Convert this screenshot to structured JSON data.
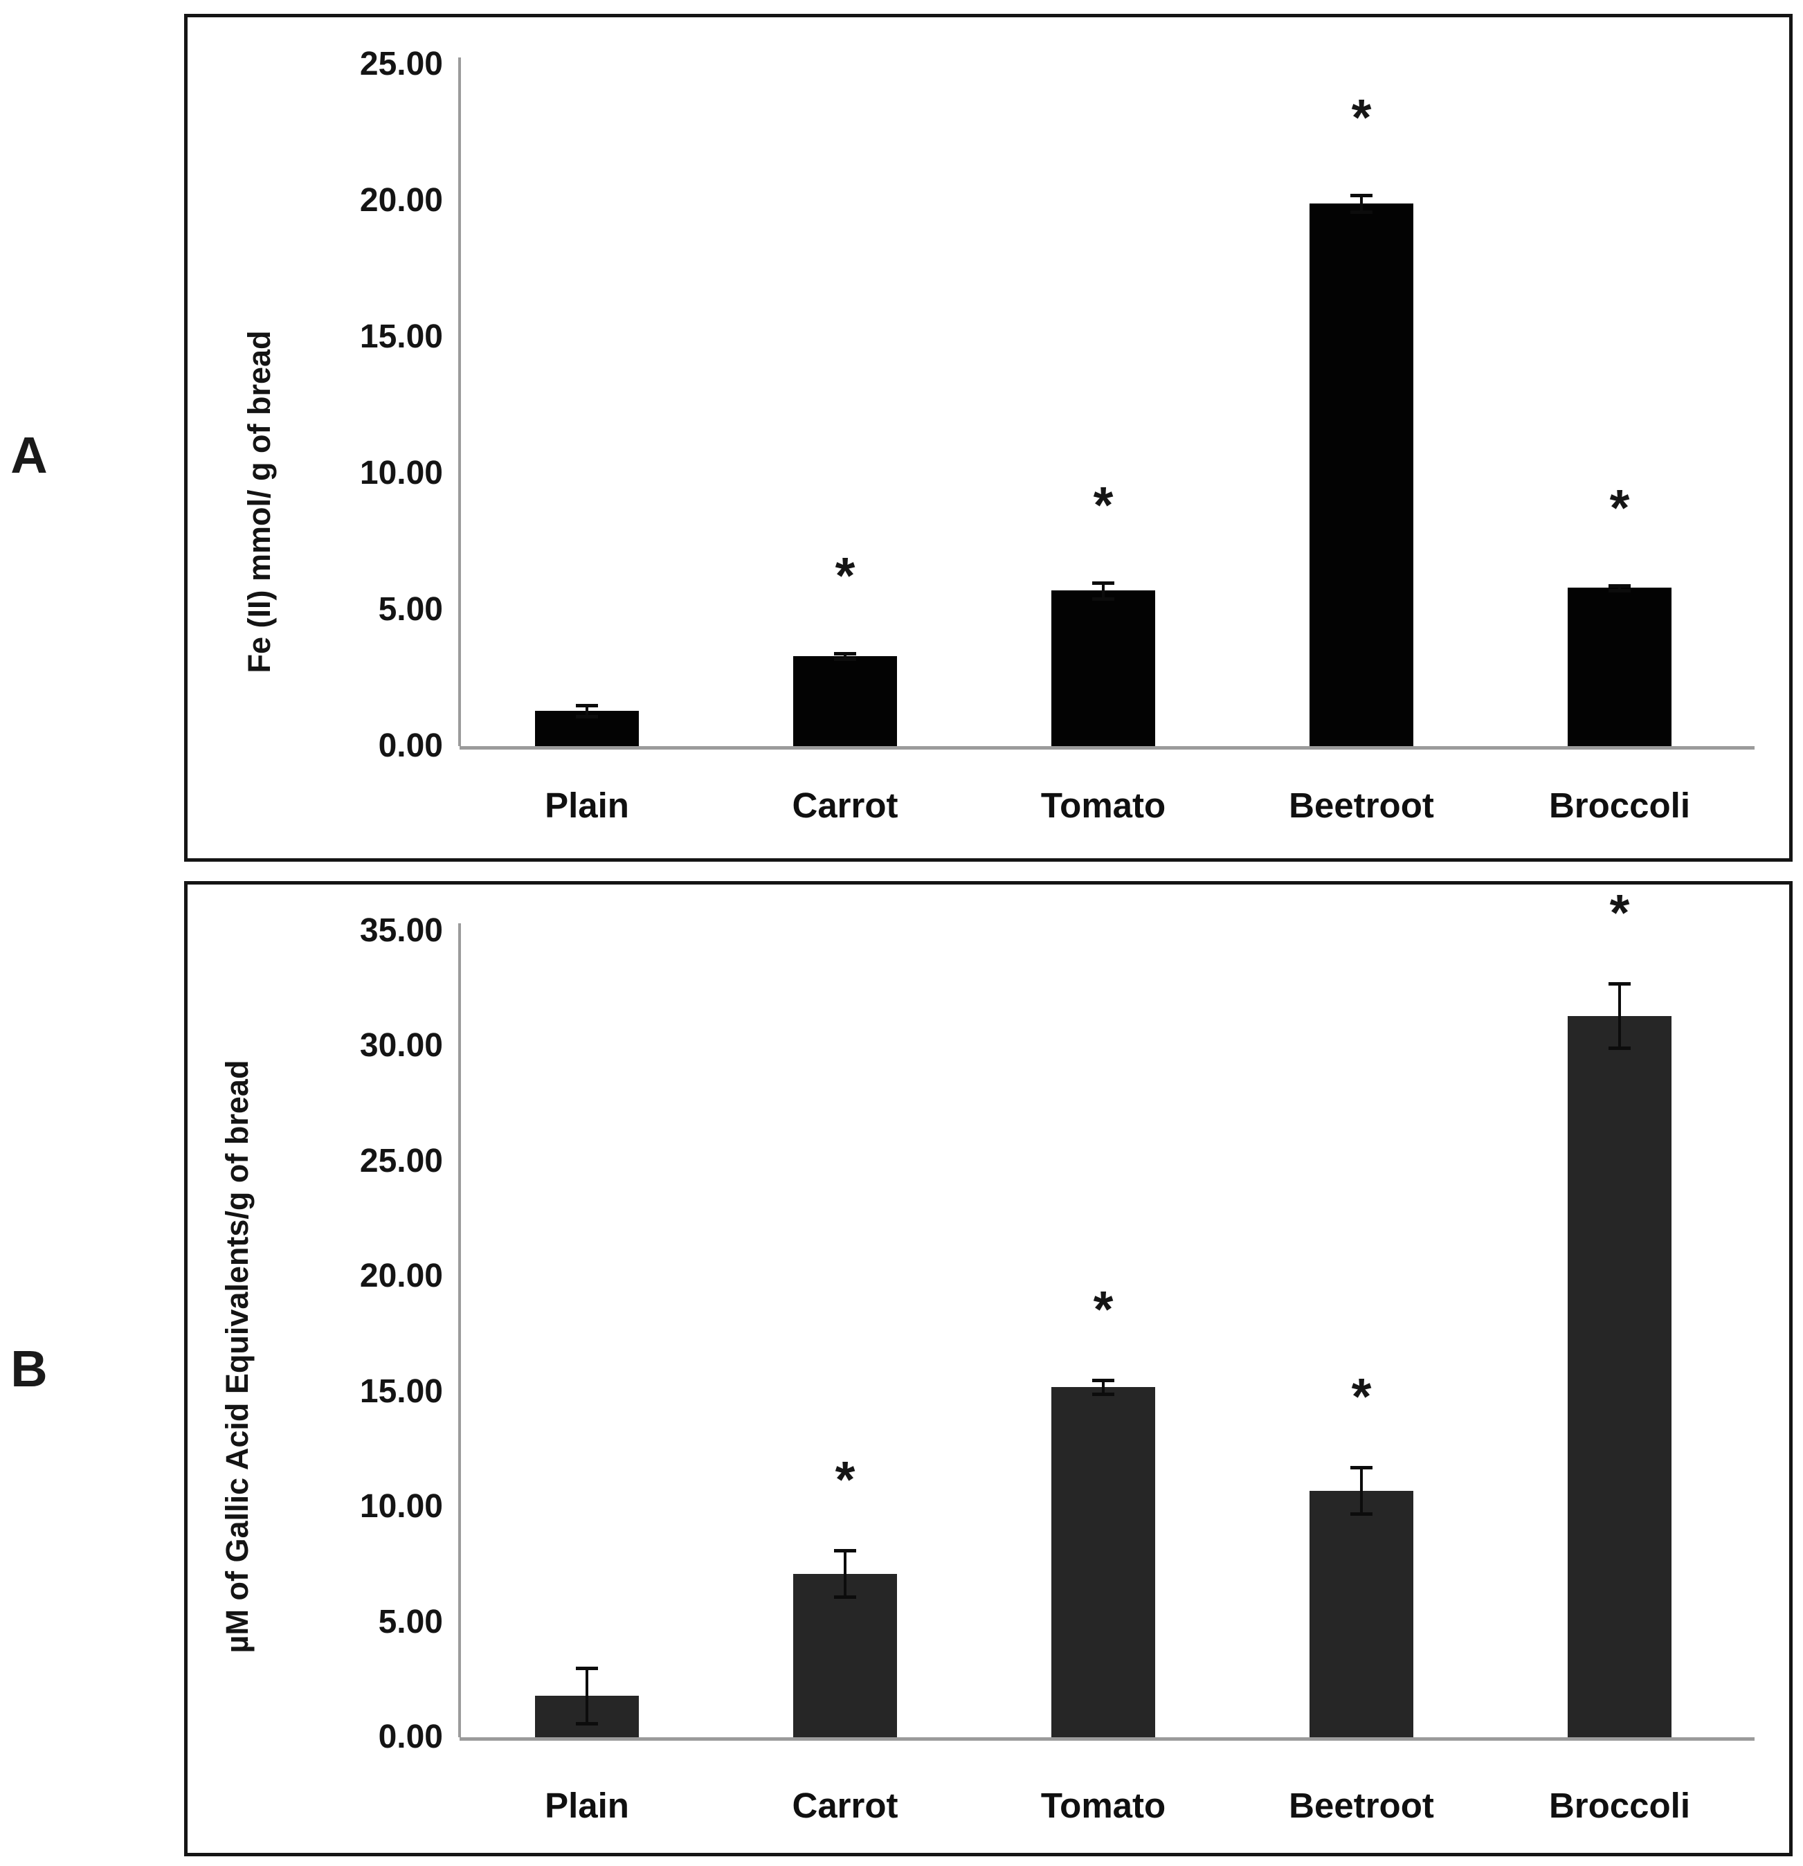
{
  "figure": {
    "panels": [
      {
        "letter": "A"
      },
      {
        "letter": "B"
      }
    ],
    "significance_symbol": "*"
  },
  "chart_data": [
    {
      "type": "bar",
      "panel": "A",
      "title": "",
      "xlabel": "",
      "ylabel": "Fe (II) mmol/ g of bread",
      "categories": [
        "Plain",
        "Carrot",
        "Tomato",
        "Beetroot",
        "Broccoli"
      ],
      "values": [
        1.3,
        3.3,
        5.7,
        19.9,
        5.8
      ],
      "errors": [
        0.2,
        0.1,
        0.3,
        0.3,
        0.1
      ],
      "significant": [
        false,
        true,
        true,
        true,
        true
      ],
      "ylim": [
        0,
        25
      ],
      "ytick_step": 5,
      "ytick_labels": [
        "0.00",
        "5.00",
        "10.00",
        "15.00",
        "20.00",
        "25.00"
      ],
      "grid": false,
      "legend": "none",
      "bar_color": "#030303",
      "axis_color": "#9b9b9b",
      "error_bar_color": "#0c0c0c"
    },
    {
      "type": "bar",
      "panel": "B",
      "title": "",
      "xlabel": "",
      "ylabel": "µM of Gallic Acid Equivalents/g of bread",
      "categories": [
        "Plain",
        "Carrot",
        "Tomato",
        "Beetroot",
        "Broccoli"
      ],
      "values": [
        1.8,
        7.1,
        15.2,
        10.7,
        31.3
      ],
      "errors": [
        1.2,
        1.0,
        0.3,
        1.0,
        1.4
      ],
      "significant": [
        false,
        true,
        true,
        true,
        true
      ],
      "ylim": [
        0,
        35
      ],
      "ytick_step": 5,
      "ytick_labels": [
        "0.00",
        "5.00",
        "10.00",
        "15.00",
        "20.00",
        "25.00",
        "30.00",
        "35.00"
      ],
      "grid": false,
      "legend": "none",
      "bar_color": "#262626",
      "axis_color": "#9b9b9b",
      "error_bar_color": "#0c0c0c"
    }
  ]
}
